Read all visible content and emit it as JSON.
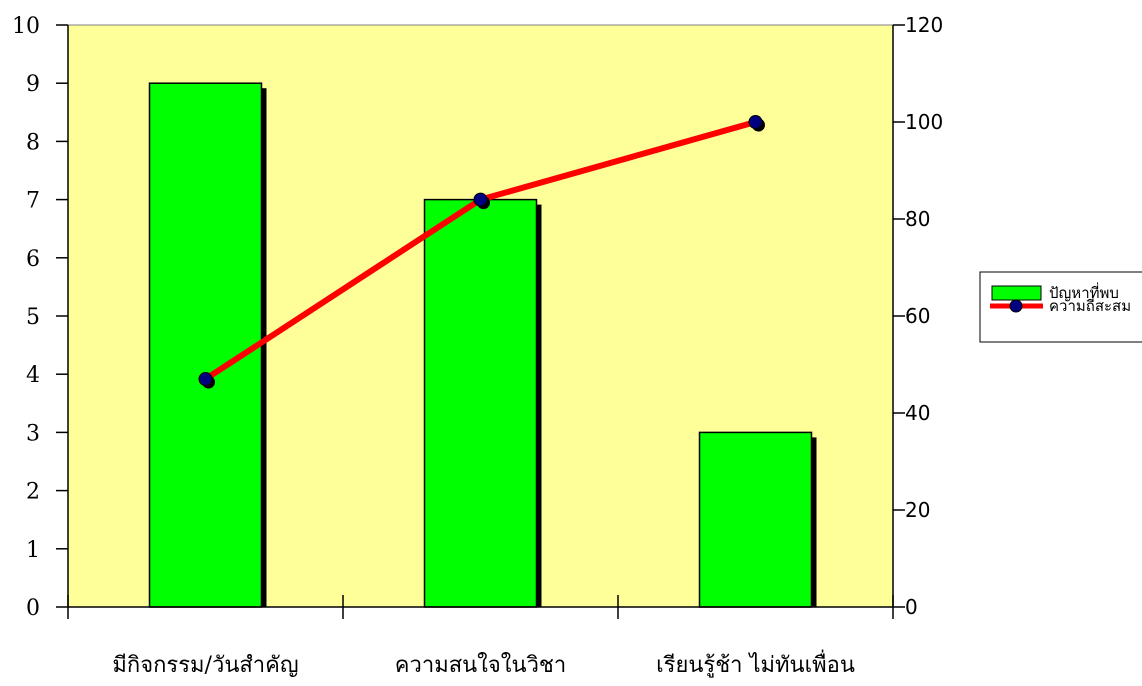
{
  "chart_data": {
    "type": "bar",
    "categories": [
      "มีกิจกรรม/วันสำคัญ",
      "ความสนใจในวิชา",
      "เรียนรู้ช้า ไม่ทันเพื่อน"
    ],
    "series": [
      {
        "name": "ปัญหาที่พบ",
        "type": "bar",
        "axis": "left",
        "values": [
          9,
          7,
          3
        ],
        "color": "#00ff00"
      },
      {
        "name": "ความถี่สะสม",
        "type": "line",
        "axis": "right",
        "values": [
          47,
          84,
          100
        ],
        "color": "#ff0000",
        "marker_color": "#000080"
      }
    ],
    "y_left": {
      "ylim": [
        0,
        10
      ],
      "ticks": [
        "0",
        "1",
        "2",
        "3",
        "4",
        "5",
        "6",
        "7",
        "8",
        "9",
        "10"
      ]
    },
    "y_right": {
      "ylim": [
        0,
        120
      ],
      "ticks": [
        "0",
        "20",
        "40",
        "60",
        "80",
        "100",
        "120"
      ]
    },
    "plot_background": "#ffff99",
    "legend": "right",
    "grid": false
  }
}
